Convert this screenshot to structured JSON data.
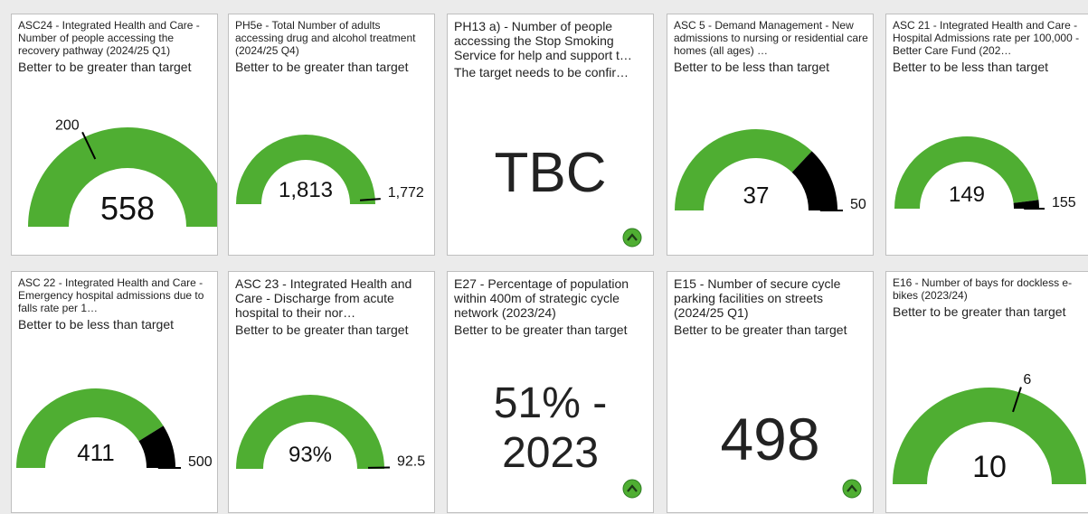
{
  "cards": [
    {
      "title": "ASC24 - Integrated Health and Care - Number of people accessing the recovery pathway (2024/25 Q1)",
      "subtitle": "Better to be greater than target",
      "type": "gauge",
      "value": 558,
      "target": 200
    },
    {
      "title": "PH5e - Total Number of adults accessing drug and alcohol treatment (2024/25 Q4)",
      "subtitle": "Better to be greater than target",
      "type": "gauge",
      "value": 1813,
      "value_label": "1,813",
      "target": 1772,
      "target_label": "1,772"
    },
    {
      "title": "PH13 a) - Number of people accessing the Stop Smoking Service for help and support t…",
      "subtitle": "The target needs to be confir…",
      "type": "text",
      "display": "TBC"
    },
    {
      "title": "ASC 5 - Demand Management - New admissions to nursing or residential care homes (all ages) …",
      "subtitle": "Better to be less than target",
      "type": "gauge",
      "value": 37,
      "target": 50
    },
    {
      "title": "ASC 21 - Integrated Health and Care - Hospital Admissions rate per 100,000 - Better Care Fund (202…",
      "subtitle": "Better to be less than target",
      "type": "gauge",
      "value": 149,
      "target": 155
    },
    {
      "title": "ASC 22 - Integrated Health and Care - Emergency hospital admissions due to falls rate per 1…",
      "subtitle": "Better to be less than target",
      "type": "gauge",
      "value": 411,
      "target": 500
    },
    {
      "title": "ASC 23 - Integrated Health and Care - Discharge from acute hospital to their nor…",
      "subtitle": "Better to be greater than target",
      "type": "gauge",
      "value": 93,
      "value_label": "93%",
      "target": 92.5
    },
    {
      "title": "E27 - Percentage of population within 400m of strategic cycle network (2023/24)",
      "subtitle": "Better to be greater than target",
      "type": "text",
      "display": "51% - 2023"
    },
    {
      "title": "E15 - Number of secure cycle parking facilities on streets (2024/25 Q1)",
      "subtitle": "Better to be greater than target",
      "type": "text",
      "display": 498
    },
    {
      "title": "E16 - Number of bays for dockless e-bikes (2023/24)",
      "subtitle": "Better to be greater than target",
      "type": "gauge",
      "value": 10,
      "target": 6
    }
  ]
}
